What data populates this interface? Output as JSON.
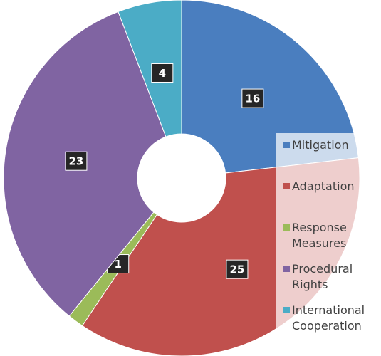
{
  "chart_data": {
    "type": "donut",
    "categories": [
      "Mitigation",
      "Adaptation",
      "Response Measures",
      "Procedural Rights",
      "International Cooperation"
    ],
    "values": [
      16,
      25,
      1,
      23,
      4
    ],
    "colors": [
      "#4a7ebf",
      "#c0504d",
      "#9bbb59",
      "#8064a2",
      "#4bacc6"
    ],
    "legend": "right"
  }
}
